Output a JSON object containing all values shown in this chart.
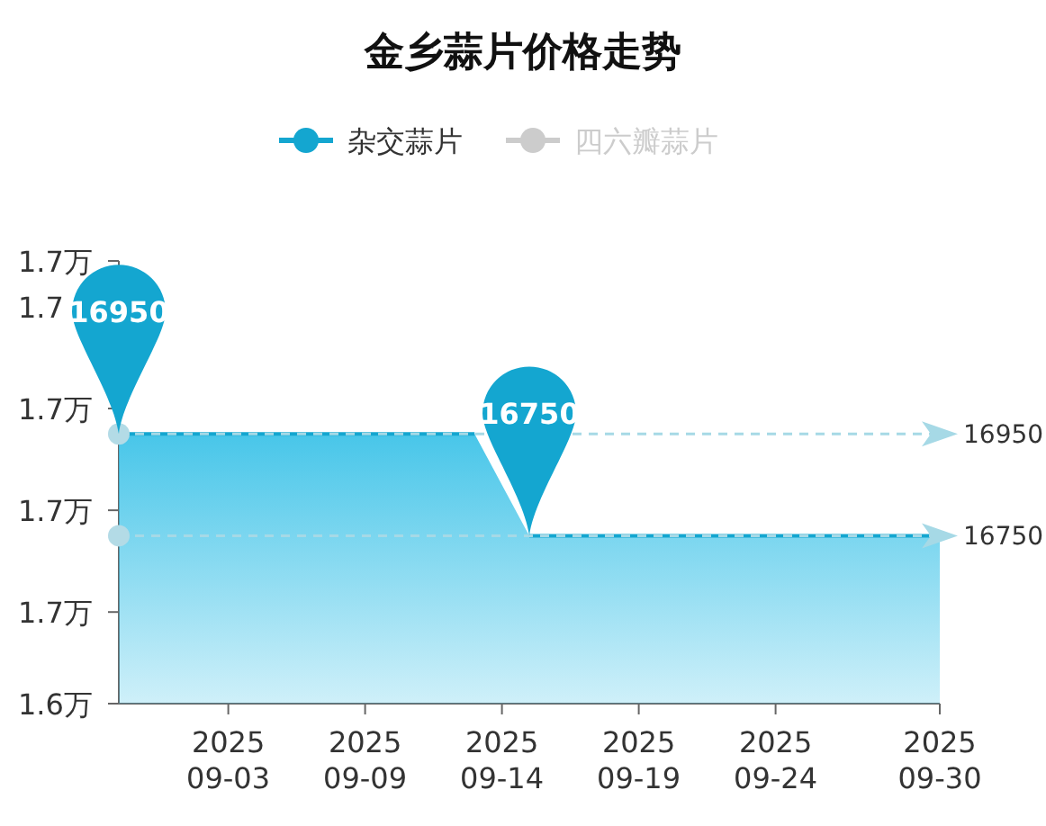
{
  "chart_data": {
    "type": "area",
    "title": "金乡蒜片价格走势",
    "categories": [
      null,
      null,
      null,
      null,
      "2025\n09-03",
      null,
      null,
      null,
      null,
      "2025\n09-09",
      null,
      null,
      null,
      null,
      "2025\n09-14",
      null,
      null,
      null,
      null,
      "2025\n09-19",
      null,
      null,
      null,
      null,
      "2025\n09-24",
      null,
      null,
      null,
      null,
      null,
      "2025\n09-30"
    ],
    "series": [
      {
        "name": "杂交蒜片",
        "color": "#14a6d0",
        "values": [
          1.695,
          1.695,
          1.695,
          1.695,
          1.695,
          1.695,
          1.695,
          1.695,
          1.695,
          1.695,
          1.695,
          1.695,
          1.695,
          1.695,
          null,
          1.675,
          1.675,
          1.675,
          1.675,
          1.675,
          1.675,
          1.675,
          1.675,
          1.675,
          1.675,
          1.675,
          1.675,
          1.675,
          1.675,
          1.675,
          1.675
        ]
      },
      {
        "name": "四六瓣蒜片",
        "color": "#cccccc",
        "values": [
          null,
          null,
          null,
          null,
          null,
          null,
          null,
          null,
          null,
          null,
          null,
          null,
          null,
          null,
          null,
          null,
          null,
          null,
          null,
          null,
          null,
          null,
          null,
          null,
          null,
          null,
          null,
          null,
          null,
          null,
          null
        ]
      }
    ],
    "ylim": [
      1.642,
      1.729
    ],
    "yticks": [
      {
        "value": 1.642,
        "label": "1.6万"
      },
      {
        "value": 1.66,
        "label": "1.7万"
      },
      {
        "value": 1.68,
        "label": "1.7万"
      },
      {
        "value": 1.7,
        "label": "1.7万"
      },
      {
        "value": 1.72,
        "label": "1.7"
      },
      {
        "value": 1.729,
        "label": "1.7万"
      }
    ],
    "legend": "top",
    "marker": "none",
    "ref_lines": [
      {
        "axis": "y",
        "value": 1.695,
        "color": "#a6d9e6",
        "line_style": "dashed"
      },
      {
        "axis": "y",
        "value": 1.675,
        "color": "#a6d9e6",
        "line_style": "dashed"
      }
    ],
    "annotations": [
      "16950",
      "16750",
      "16950",
      "16750"
    ]
  }
}
